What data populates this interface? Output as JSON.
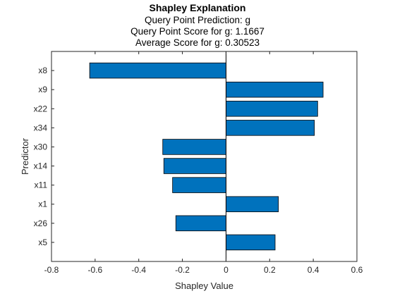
{
  "chart_data": {
    "type": "bar",
    "orientation": "horizontal",
    "title": "Shapley Explanation",
    "subtitles": [
      "Query Point Prediction: g",
      "Query Point Score for g: 1.1667",
      "Average Score for g: 0.30523"
    ],
    "xlabel": "Shapley Value",
    "ylabel": "Predictor",
    "categories": [
      "x8",
      "x9",
      "x22",
      "x34",
      "x30",
      "x14",
      "x11",
      "x1",
      "x26",
      "x5"
    ],
    "values": [
      -0.625,
      0.445,
      0.42,
      0.405,
      -0.29,
      -0.285,
      -0.245,
      0.24,
      -0.23,
      0.225
    ],
    "xlim": [
      -0.8,
      0.6
    ],
    "xticks": [
      "-0.8",
      "-0.6",
      "-0.4",
      "-0.2",
      "0",
      "0.2",
      "0.4",
      "0.6"
    ],
    "xtick_values": [
      -0.8,
      -0.6,
      -0.4,
      -0.2,
      0,
      0.2,
      0.4,
      0.6
    ],
    "grid": false,
    "legend": "none",
    "bar_color": "#0072BD",
    "edge_color": "#000000"
  }
}
